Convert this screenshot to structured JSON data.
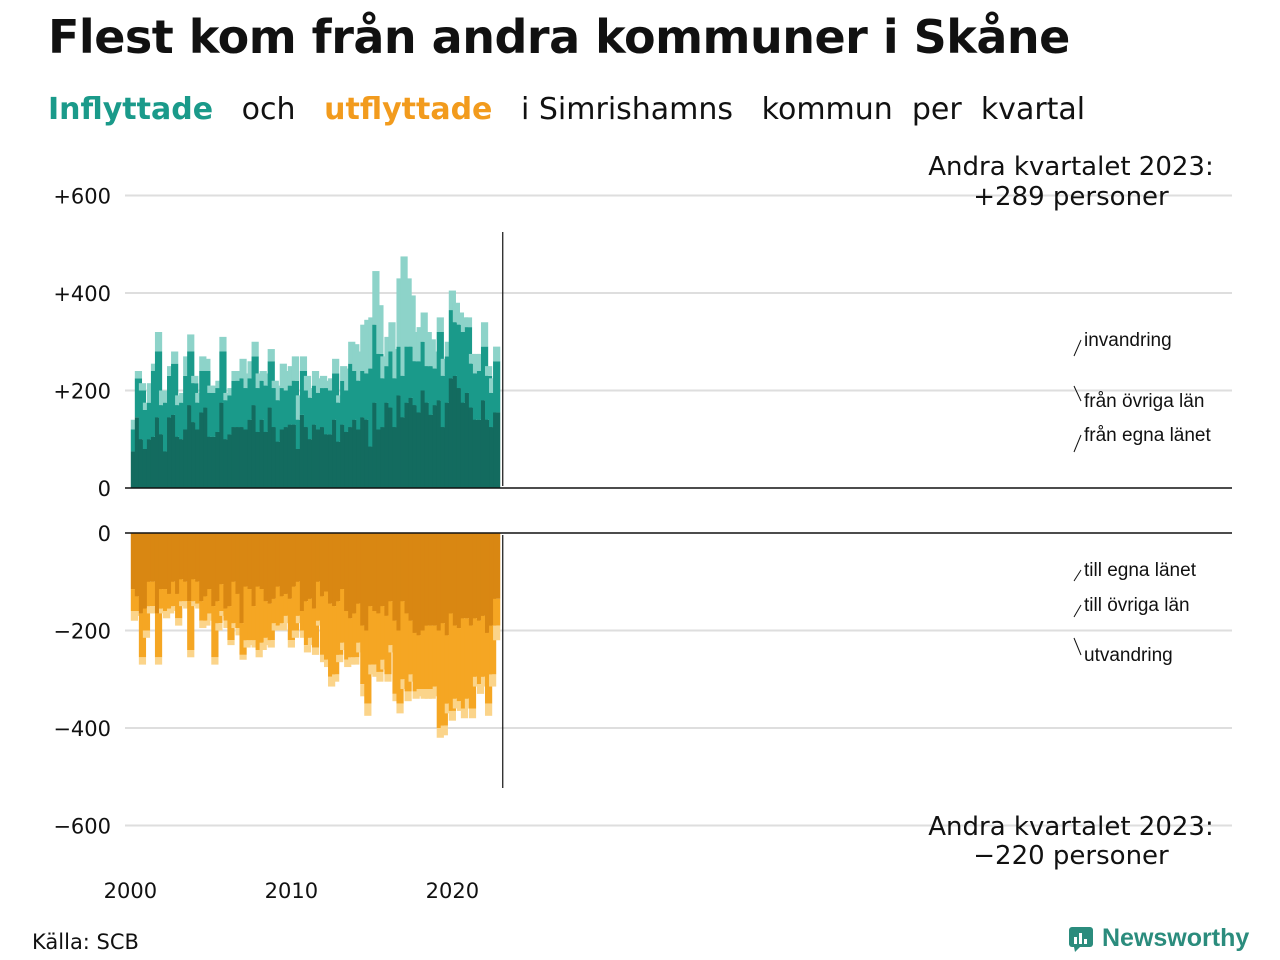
{
  "title": "Flest kom från andra kommuner i Skåne",
  "subtitle": {
    "part1": "Inflyttade",
    "part2": "och",
    "part3": "utflyttade",
    "part4": "i Simrishamns",
    "part5": "kommun",
    "part6": "per",
    "part7": "kvartal"
  },
  "annotations": {
    "top_line1": "Andra kvartalet 2023:",
    "top_line2": "+289 personer",
    "bottom_line1": "Andra kvartalet 2023:",
    "bottom_line2": "−220 personer"
  },
  "labels": {
    "in_immigration": "invandring",
    "in_other_counties": "från övriga län",
    "in_own_county": "från egna länet",
    "out_own_county": "till egna länet",
    "out_other_counties": "till övriga län",
    "out_emigration": "utvandring"
  },
  "source": "Källa: SCB",
  "logo_text": "Newsworthy",
  "colors": {
    "in_own": "#136b5f",
    "in_other": "#1a9a8a",
    "in_immigration": "#8dd3c9",
    "out_own": "#d98712",
    "out_other": "#f5a623",
    "out_emigration": "#fbd48a"
  },
  "chart_data": {
    "type": "bar",
    "stacked": true,
    "x_start": "2000 Q1",
    "x_ticks": [
      "2000",
      "2010",
      "2020"
    ],
    "y_ticks": [
      "+600",
      "+400",
      "+200",
      "0",
      "0",
      "−200",
      "−400",
      "−600"
    ],
    "ylim_in": [
      0,
      600
    ],
    "ylim_out": [
      -600,
      0
    ],
    "series_in": [
      {
        "name": "från egna länet",
        "values": [
          75,
          145,
          100,
          80,
          100,
          105,
          145,
          110,
          75,
          145,
          150,
          105,
          100,
          120,
          170,
          135,
          120,
          155,
          165,
          105,
          105,
          115,
          175,
          100,
          110,
          125,
          125,
          125,
          120,
          140,
          170,
          115,
          140,
          115,
          165,
          125,
          95,
          120,
          125,
          130,
          130,
          80,
          150,
          125,
          100,
          130,
          120,
          125,
          110,
          110,
          140,
          95,
          130,
          115,
          125,
          140,
          120,
          145,
          140,
          85,
          175,
          120,
          125,
          175,
          165,
          125,
          190,
          145,
          175,
          185,
          170,
          155,
          200,
          175,
          150,
          170,
          180,
          125,
          175,
          225,
          230,
          205,
          175,
          195,
          165,
          140,
          140,
          180,
          140,
          125,
          155
        ]
      },
      {
        "name": "från övriga län",
        "values": [
          45,
          80,
          100,
          80,
          75,
          135,
          135,
          60,
          100,
          85,
          105,
          65,
          75,
          110,
          110,
          80,
          55,
          85,
          75,
          90,
          90,
          90,
          105,
          80,
          80,
          95,
          95,
          100,
          85,
          85,
          100,
          90,
          80,
          95,
          95,
          80,
          85,
          85,
          75,
          80,
          90,
          60,
          90,
          75,
          85,
          80,
          75,
          80,
          95,
          90,
          95,
          80,
          90,
          85,
          130,
          100,
          100,
          95,
          95,
          160,
          160,
          155,
          100,
          75,
          115,
          100,
          100,
          85,
          115,
          105,
          90,
          105,
          100,
          75,
          100,
          75,
          140,
          105,
          95,
          140,
          110,
          130,
          145,
          135,
          90,
          95,
          100,
          110,
          90,
          70,
          105
        ]
      },
      {
        "name": "invandring",
        "values": [
          20,
          15,
          15,
          15,
          40,
          15,
          40,
          30,
          25,
          20,
          25,
          20,
          20,
          40,
          35,
          15,
          20,
          30,
          25,
          15,
          15,
          15,
          30,
          15,
          15,
          20,
          20,
          40,
          30,
          35,
          30,
          30,
          20,
          25,
          25,
          15,
          30,
          50,
          40,
          40,
          50,
          50,
          30,
          30,
          20,
          30,
          30,
          25,
          15,
          25,
          30,
          15,
          30,
          45,
          45,
          55,
          60,
          95,
          110,
          105,
          110,
          100,
          45,
          60,
          60,
          60,
          140,
          245,
          140,
          105,
          60,
          70,
          60,
          70,
          55,
          35,
          30,
          35,
          30,
          40,
          40,
          25,
          30,
          20,
          20,
          40,
          35,
          50,
          20,
          30,
          30
        ]
      }
    ],
    "series_out": [
      {
        "name": "till egna länet",
        "values": [
          -115,
          -130,
          -165,
          -155,
          -100,
          -100,
          -165,
          -115,
          -115,
          -125,
          -100,
          -125,
          -95,
          -100,
          -140,
          -95,
          -100,
          -140,
          -130,
          -115,
          -150,
          -140,
          -105,
          -155,
          -150,
          -100,
          -125,
          -185,
          -110,
          -115,
          -150,
          -110,
          -115,
          -140,
          -145,
          -135,
          -110,
          -130,
          -125,
          -135,
          -110,
          -100,
          -160,
          -140,
          -135,
          -155,
          -100,
          -130,
          -120,
          -145,
          -150,
          -140,
          -115,
          -160,
          -175,
          -165,
          -145,
          -190,
          -200,
          -150,
          -160,
          -165,
          -150,
          -170,
          -140,
          -180,
          -200,
          -140,
          -165,
          -180,
          -205,
          -210,
          -200,
          -190,
          -190,
          -190,
          -200,
          -185,
          -210,
          -165,
          -190,
          -195,
          -175,
          -175,
          -190,
          -175,
          -180,
          -170,
          -205,
          -190,
          -135
        ]
      },
      {
        "name": "till övriga län",
        "values": [
          -45,
          -30,
          -90,
          -45,
          -50,
          -50,
          -90,
          -40,
          -45,
          -30,
          -50,
          -50,
          -45,
          -40,
          -100,
          -45,
          -45,
          -40,
          -50,
          -50,
          -105,
          -45,
          -55,
          -25,
          -70,
          -85,
          -70,
          -65,
          -110,
          -105,
          -70,
          -130,
          -110,
          -75,
          -75,
          -50,
          -80,
          -55,
          -45,
          -85,
          -90,
          -70,
          -40,
          -90,
          -80,
          -80,
          -80,
          -120,
          -140,
          -150,
          -140,
          -110,
          -110,
          -100,
          -80,
          -90,
          -80,
          -120,
          -150,
          -120,
          -110,
          -120,
          -110,
          -120,
          -90,
          -150,
          -150,
          -160,
          -160,
          -110,
          -120,
          -110,
          -120,
          -130,
          -130,
          -125,
          -200,
          -210,
          -140,
          -200,
          -150,
          -150,
          -185,
          -165,
          -170,
          -120,
          -130,
          -125,
          -145,
          -100,
          -55
        ]
      },
      {
        "name": "utvandring",
        "values": [
          -20,
          -10,
          -15,
          -15,
          -15,
          -15,
          -15,
          -10,
          -15,
          -10,
          -10,
          -15,
          -10,
          -15,
          -15,
          -10,
          -10,
          -15,
          -10,
          -15,
          -15,
          -15,
          -10,
          -15,
          -10,
          -10,
          -15,
          -10,
          -15,
          -10,
          -15,
          -15,
          -15,
          -15,
          -15,
          -15,
          -10,
          -15,
          -15,
          -15,
          -15,
          -15,
          -15,
          -15,
          -15,
          -15,
          -10,
          -15,
          -15,
          -20,
          -15,
          -15,
          -15,
          -15,
          -15,
          -15,
          -20,
          -25,
          -25,
          -20,
          -25,
          -20,
          -20,
          -15,
          -15,
          -15,
          -20,
          -20,
          -20,
          -15,
          -15,
          -15,
          -20,
          -20,
          -20,
          -20,
          -20,
          -20,
          -20,
          -20,
          -20,
          -20,
          -20,
          -20,
          -20,
          -20,
          -20,
          -20,
          -25,
          -25,
          -30
        ]
      }
    ]
  }
}
